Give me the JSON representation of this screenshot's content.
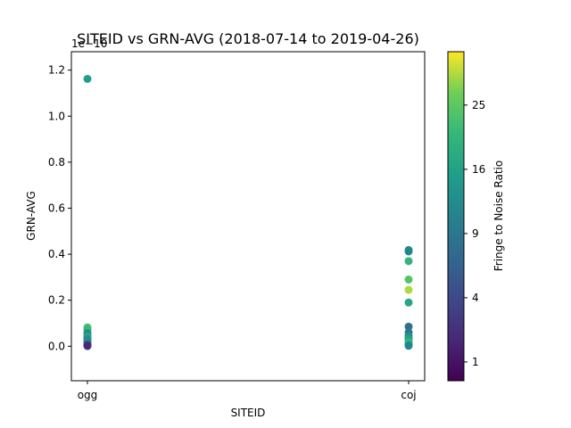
{
  "chart_data": {
    "type": "scatter",
    "title": "SITEID vs GRN-AVG (2018-07-14 to 2019-04-26)",
    "xlabel": "SITEID",
    "ylabel": "GRN-AVG",
    "y_scale_label": "1e−10",
    "categories": [
      "ogg",
      "coj"
    ],
    "ylim": [
      -0.15,
      1.28
    ],
    "y_ticks": [
      "0.0",
      "0.2",
      "0.4",
      "0.6",
      "0.8",
      "1.0",
      "1.2"
    ],
    "y_tick_values": [
      0.0,
      0.2,
      0.4,
      0.6,
      0.8,
      1.0,
      1.2
    ],
    "colorbar": {
      "label": "Fringe to Noise Ratio",
      "colormap": "viridis",
      "scale": "sqrt",
      "range": [
        0.5,
        34
      ],
      "ticks": [
        "1",
        "4",
        "9",
        "16",
        "25"
      ],
      "tick_values": [
        1,
        4,
        9,
        16,
        25
      ]
    },
    "points": [
      {
        "x": "ogg",
        "y": 1.162,
        "c": 15.5
      },
      {
        "x": "ogg",
        "y": 0.082,
        "c": 23
      },
      {
        "x": "ogg",
        "y": 0.072,
        "c": 21
      },
      {
        "x": "ogg",
        "y": 0.058,
        "c": 14
      },
      {
        "x": "ogg",
        "y": 0.05,
        "c": 11
      },
      {
        "x": "ogg",
        "y": 0.044,
        "c": 16
      },
      {
        "x": "ogg",
        "y": 0.038,
        "c": 19
      },
      {
        "x": "ogg",
        "y": 0.032,
        "c": 12
      },
      {
        "x": "ogg",
        "y": 0.026,
        "c": 14
      },
      {
        "x": "ogg",
        "y": 0.02,
        "c": 10
      },
      {
        "x": "ogg",
        "y": 0.015,
        "c": 15
      },
      {
        "x": "ogg",
        "y": 0.01,
        "c": 8
      },
      {
        "x": "ogg",
        "y": 0.006,
        "c": 5
      },
      {
        "x": "ogg",
        "y": 0.003,
        "c": 3
      },
      {
        "x": "ogg",
        "y": 0.001,
        "c": 2
      },
      {
        "x": "coj",
        "y": 0.418,
        "c": 13
      },
      {
        "x": "coj",
        "y": 0.412,
        "c": 11
      },
      {
        "x": "coj",
        "y": 0.37,
        "c": 20
      },
      {
        "x": "coj",
        "y": 0.29,
        "c": 24
      },
      {
        "x": "coj",
        "y": 0.245,
        "c": 30
      },
      {
        "x": "coj",
        "y": 0.19,
        "c": 17
      },
      {
        "x": "coj",
        "y": 0.085,
        "c": 8
      },
      {
        "x": "coj",
        "y": 0.06,
        "c": 9
      },
      {
        "x": "coj",
        "y": 0.045,
        "c": 12
      },
      {
        "x": "coj",
        "y": 0.035,
        "c": 15
      },
      {
        "x": "coj",
        "y": 0.028,
        "c": 16
      },
      {
        "x": "coj",
        "y": 0.018,
        "c": 19
      },
      {
        "x": "coj",
        "y": 0.01,
        "c": 22
      },
      {
        "x": "coj",
        "y": 0.005,
        "c": 14
      },
      {
        "x": "coj",
        "y": 0.002,
        "c": 11
      }
    ]
  }
}
